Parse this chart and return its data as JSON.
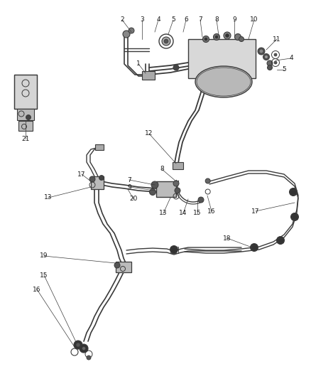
{
  "bg_color": "#ffffff",
  "line_color": "#3a3a3a",
  "label_color": "#1a1a1a",
  "fig_width": 4.38,
  "fig_height": 5.33,
  "dpi": 100,
  "coord_system": "pixels_438x533"
}
